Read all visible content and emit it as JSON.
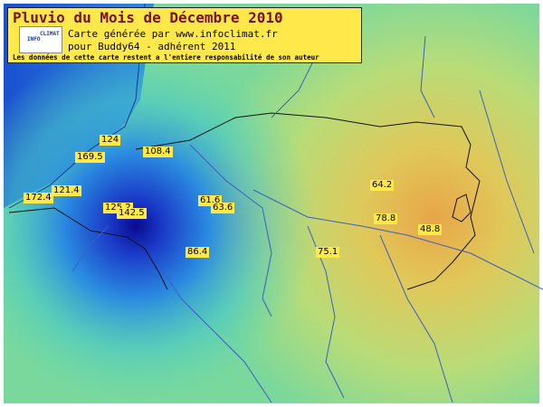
{
  "header": {
    "title": "Pluvio du Mois de Décembre 2010",
    "logo_text": [
      "INFO",
      "CLIMAT"
    ],
    "lines": [
      "Carte générée par www.infoclimat.fr",
      "pour Buddy64 - adhérent 2011",
      "Les données de cette carte restent a l'entiere responsabilité de son auteur"
    ]
  },
  "stations": [
    124,
    169.5,
    108.4,
    172.4,
    121.4,
    125.2,
    142.5,
    61.6,
    63.6,
    86.4,
    75.1,
    64.2,
    78.8,
    48.8
  ]
}
